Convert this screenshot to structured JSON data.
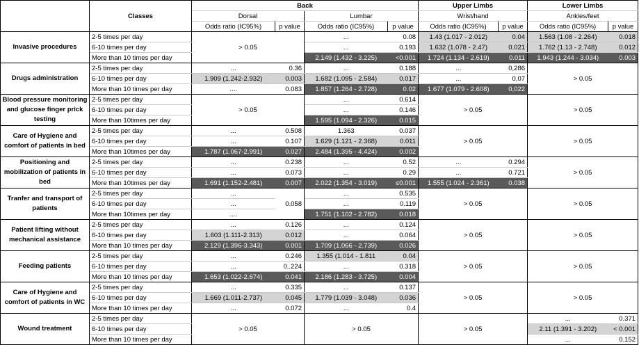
{
  "header": {
    "classes": "Classes",
    "back": "Back",
    "upper_limbs": "Upper Limbs",
    "lower_limbs": "Lower Limbs",
    "dorsal": "Dorsal",
    "lumbar": "Lumbar",
    "wrist_hand": "Wrist/hand",
    "ankles_feet": "Ankles/feet",
    "odds_ratio": "Odds ratio (IC95%)",
    "p_value": "p value"
  },
  "frequencies": {
    "f1": "2-5 times per day",
    "f2": "6-10 times per day",
    "f3": "More than 10 times per day",
    "f3b": "More than 10times per day"
  },
  "common": {
    "gt": "> 0.05",
    "dots": "...",
    "dots4": "....",
    "dots_dot": "…."
  },
  "shading": {
    "light": "#d4d4d4",
    "dark": "#5a5a5a"
  },
  "rows": {
    "invasive": {
      "label": "Invasive procedures",
      "r1": {
        "lum_or": "...",
        "lum_p": "0.08",
        "wr_or": "1.43 (1.017 - 2.012)",
        "wr_p": "0.04",
        "ank_or": "1.563 (1.08 - 2.264)",
        "ank_p": "0.018"
      },
      "r2": {
        "lum_or": "...",
        "lum_p": "0.193",
        "wr_or": "1.632 (1.078 - 2.47)",
        "wr_p": "0.021",
        "ank_or": "1.762 (1.13 - 2.748)",
        "ank_p": "0.012"
      },
      "r3": {
        "lum_or": "2.149 (1.432 - 3.225)",
        "lum_p": "<0.001",
        "wr_or": "1.724 (1.134 - 2.619)",
        "wr_p": "0.011",
        "ank_or": "1.943 (1.244 - 3.034)",
        "ank_p": "0.003"
      }
    },
    "drugs": {
      "label": "Drugs administration",
      "r1": {
        "dor_or": "...",
        "dor_p": "0.36",
        "lum_or": "...",
        "lum_p": "0.188",
        "wr_or": "...",
        "wr_p": "0,286"
      },
      "r2": {
        "dor_or": "1.909 (1.242-2.932)",
        "dor_p": "0.003",
        "lum_or": "1.682 (1.095 - 2.584)",
        "lum_p": "0.017",
        "wr_or": "...",
        "wr_p": "0,07"
      },
      "r3": {
        "dor_or": "....",
        "dor_p": "0.083",
        "lum_or": "1.857 (1.264 - 2.728)",
        "lum_p": "0.02",
        "wr_or": "1.677 (1.079 - 2.608)",
        "wr_p": "0,022"
      }
    },
    "blood": {
      "label": "Blood pressure monitoring and glucose finger prick testing",
      "r1": {
        "lum_or": "...",
        "lum_p": "0.614"
      },
      "r2": {
        "lum_or": "...",
        "lum_p": "0.146"
      },
      "r3": {
        "lum_or": "1.595 (1.094 - 2.326)",
        "lum_p": "0.015"
      }
    },
    "hygiene_bed": {
      "label": "Care of Hygiene and comfort of patients in bed",
      "r1": {
        "dor_or": "...",
        "dor_p": "0.508",
        "lum_or": "1.363",
        "lum_p": "0.037"
      },
      "r2": {
        "dor_or": "...",
        "dor_p": "0.107",
        "lum_or": "1.629 (1.121 - 2.368)",
        "lum_p": "0.011"
      },
      "r3": {
        "dor_or": "1.787 (1.067-2.991)",
        "dor_p": "0.027",
        "lum_or": "2.484 (1.395 - 4.424)",
        "lum_p": "0.002"
      }
    },
    "positioning": {
      "label": "Positioning and mobilization of patients in bed",
      "r1": {
        "dor_or": "...",
        "dor_p": "0.238",
        "lum_or": "...",
        "lum_p": "0.52",
        "wr_or": "...",
        "wr_p": "0.294"
      },
      "r2": {
        "dor_or": "...",
        "dor_p": "0.073",
        "lum_or": "...",
        "lum_p": "0.29",
        "wr_or": "...",
        "wr_p": "0.721"
      },
      "r3": {
        "dor_or": "1.691 (1.152-2.481)",
        "dor_p": "0.007",
        "lum_or": "2.022 (1.354 - 3.019)",
        "lum_p": "≤0.001",
        "wr_or": "1.555 (1.024 - 2.361)",
        "wr_p": "0.038"
      }
    },
    "transfer": {
      "label": "Tranfer and transport of patients",
      "r1": {
        "dor_or": "...",
        "lum_or": "...",
        "lum_p": "0.535"
      },
      "r2": {
        "dor_or": "...",
        "dor_p": "0.058",
        "lum_or": "...",
        "lum_p": "0.119"
      },
      "r3": {
        "dor_or": "....",
        "lum_or": "1.751 (1.102 - 2.782)",
        "lum_p": "0.018"
      }
    },
    "lifting": {
      "label": "Patient lifting without mechanical assistance",
      "r1": {
        "dor_or": "...",
        "dor_p": "0.126",
        "lum_or": "...",
        "lum_p": "0.124"
      },
      "r2": {
        "dor_or": "1.603 (1.111-2.313)",
        "dor_p": "0.012",
        "lum_or": "...",
        "lum_p": "0.064"
      },
      "r3": {
        "dor_or": "2.129 (1.396-3.343)",
        "dor_p": "0.001",
        "lum_or": "1.709 (1.066 - 2.739)",
        "lum_p": "0.026"
      }
    },
    "feeding": {
      "label": "Feeding patients",
      "r1": {
        "dor_or": "...",
        "dor_p": "0.246",
        "lum_or": "1.355 (1.014 - 1.811",
        "lum_p": "0.04"
      },
      "r2": {
        "dor_or": "...",
        "dor_p": "0..224",
        "lum_or": "...",
        "lum_p": "0.318"
      },
      "r3": {
        "dor_or": "1.653 (1.022-2.674)",
        "dor_p": "0.041",
        "lum_or": "2.186 (1.283 - 3.725)",
        "lum_p": "0.004"
      }
    },
    "hygiene_wc": {
      "label": "Care of Hygiene and comfort of patients in WC",
      "r1": {
        "dor_or": "...",
        "dor_p": "0.335",
        "lum_or": "...",
        "lum_p": "0.137"
      },
      "r2": {
        "dor_or": "1.669 (1.011-2.737)",
        "dor_p": "0.045",
        "lum_or": "1.779 (1.039 - 3.048)",
        "lum_p": "0.036"
      },
      "r3": {
        "dor_or": "...",
        "dor_p": "0.072",
        "lum_or": "...",
        "lum_p": "0.4"
      }
    },
    "wound": {
      "label": "Wound treatment",
      "r1": {
        "ank_or": "...",
        "ank_p": "0.371"
      },
      "r2": {
        "ank_or": "2.11 (1.391 - 3.202)",
        "ank_p": "< 0.001"
      },
      "r3": {
        "ank_or": "...",
        "ank_p": "0.152"
      }
    }
  }
}
